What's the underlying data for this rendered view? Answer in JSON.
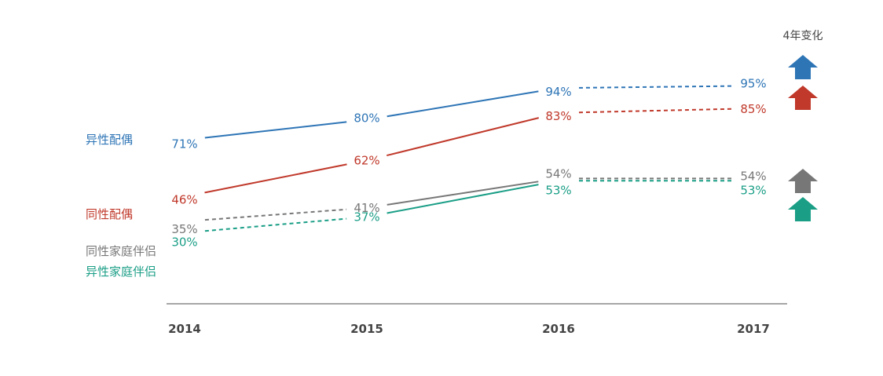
{
  "chart_data": {
    "type": "line",
    "categories": [
      "2014",
      "2015",
      "2016",
      "2017"
    ],
    "change_title": "4年变化",
    "series": [
      {
        "name": "异性配偶",
        "values": [
          71,
          80,
          94,
          95
        ],
        "labels": [
          "71%",
          "80%",
          "94%",
          "95%"
        ],
        "color": "#2e75b6",
        "dashed": [
          false,
          false,
          true
        ],
        "change": "up"
      },
      {
        "name": "同性配偶",
        "values": [
          46,
          62,
          83,
          85
        ],
        "labels": [
          "46%",
          "62%",
          "83%",
          "85%"
        ],
        "color": "#c0392b",
        "dashed": [
          false,
          false,
          true
        ],
        "change": "up"
      },
      {
        "name": "同性家庭伴侣",
        "values": [
          35,
          41,
          54,
          54
        ],
        "labels": [
          "35%",
          "41%",
          "54%",
          "54%"
        ],
        "color": "#777777",
        "dashed": [
          true,
          false,
          true
        ],
        "change": "up"
      },
      {
        "name": "异性家庭伴侣",
        "values": [
          30,
          37,
          53,
          53
        ],
        "labels": [
          "30%",
          "37%",
          "53%",
          "53%"
        ],
        "color": "#1a9e86",
        "dashed": [
          true,
          false,
          true
        ],
        "change": "up"
      }
    ]
  }
}
